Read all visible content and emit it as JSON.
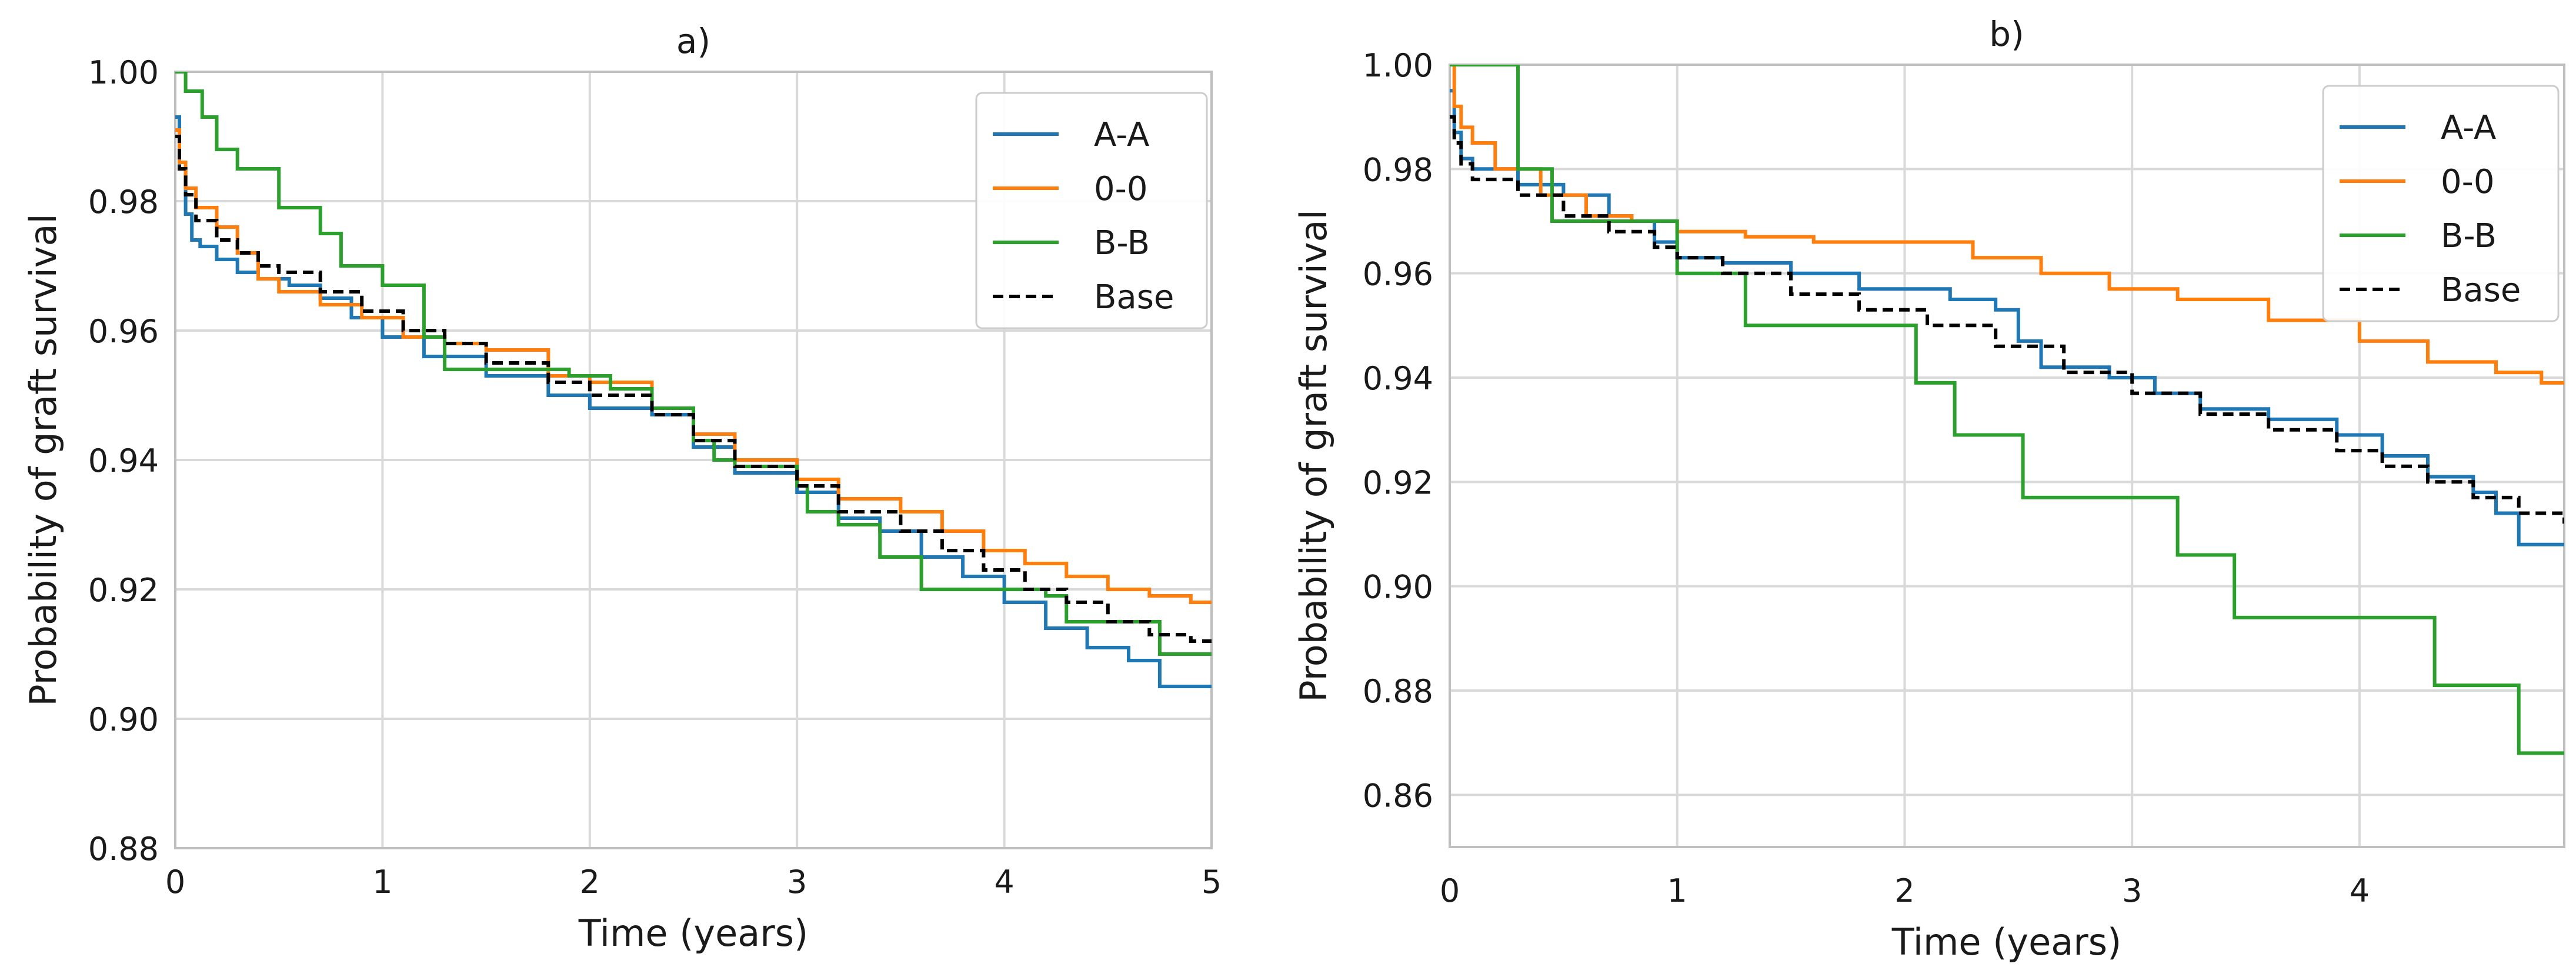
{
  "chart_data": [
    {
      "type": "line",
      "title": "a)",
      "xlabel": "Time (years)",
      "ylabel": "Probability of graft survival",
      "xlim": [
        0,
        5
      ],
      "ylim": [
        0.88,
        1.0
      ],
      "xticks": [
        0,
        1,
        2,
        3,
        4,
        5
      ],
      "xtick_labels": [
        "0",
        "1",
        "2",
        "3",
        "4",
        "5"
      ],
      "yticks": [
        0.88,
        0.9,
        0.92,
        0.94,
        0.96,
        0.98,
        1.0
      ],
      "ytick_labels": [
        "0.88",
        "0.90",
        "0.92",
        "0.94",
        "0.96",
        "0.98",
        "1.00"
      ],
      "grid": true,
      "legend_position": "top-right",
      "series": [
        {
          "name": "A-A",
          "color": "#1f77b4",
          "style": "solid",
          "x": [
            0,
            0.02,
            0.05,
            0.08,
            0.12,
            0.2,
            0.3,
            0.4,
            0.55,
            0.7,
            0.85,
            1.0,
            1.2,
            1.5,
            1.8,
            2.0,
            2.3,
            2.5,
            2.7,
            3.0,
            3.2,
            3.4,
            3.6,
            3.8,
            4.0,
            4.2,
            4.4,
            4.6,
            4.75,
            5.0
          ],
          "y": [
            0.993,
            0.985,
            0.978,
            0.974,
            0.973,
            0.971,
            0.969,
            0.968,
            0.967,
            0.965,
            0.962,
            0.959,
            0.956,
            0.953,
            0.95,
            0.948,
            0.947,
            0.942,
            0.938,
            0.935,
            0.931,
            0.929,
            0.925,
            0.922,
            0.918,
            0.914,
            0.911,
            0.909,
            0.905,
            0.905
          ]
        },
        {
          "name": "0-0",
          "color": "#ff7f0e",
          "style": "solid",
          "x": [
            0,
            0.02,
            0.05,
            0.1,
            0.2,
            0.3,
            0.4,
            0.5,
            0.7,
            0.9,
            1.1,
            1.3,
            1.5,
            1.8,
            2.0,
            2.3,
            2.5,
            2.7,
            3.0,
            3.2,
            3.5,
            3.7,
            3.9,
            4.1,
            4.3,
            4.5,
            4.7,
            4.9,
            5.0
          ],
          "y": [
            0.991,
            0.986,
            0.982,
            0.979,
            0.976,
            0.972,
            0.968,
            0.966,
            0.964,
            0.962,
            0.959,
            0.958,
            0.957,
            0.953,
            0.952,
            0.948,
            0.944,
            0.94,
            0.937,
            0.934,
            0.932,
            0.929,
            0.926,
            0.924,
            0.922,
            0.92,
            0.919,
            0.918,
            0.918
          ]
        },
        {
          "name": "B-B",
          "color": "#2ca02c",
          "style": "solid",
          "x": [
            0,
            0.05,
            0.13,
            0.2,
            0.3,
            0.5,
            0.7,
            0.8,
            1.0,
            1.2,
            1.3,
            1.5,
            1.9,
            2.1,
            2.3,
            2.5,
            2.6,
            2.7,
            2.9,
            3.0,
            3.05,
            3.2,
            3.4,
            3.6,
            3.8,
            4.0,
            4.2,
            4.3,
            4.6,
            4.75,
            5.0
          ],
          "y": [
            1.0,
            0.997,
            0.993,
            0.988,
            0.985,
            0.979,
            0.975,
            0.97,
            0.967,
            0.959,
            0.954,
            0.954,
            0.953,
            0.951,
            0.948,
            0.943,
            0.94,
            0.939,
            0.939,
            0.936,
            0.932,
            0.93,
            0.925,
            0.92,
            0.92,
            0.92,
            0.919,
            0.915,
            0.915,
            0.91,
            0.91
          ]
        },
        {
          "name": "Base",
          "color": "#000000",
          "style": "dashed",
          "x": [
            0,
            0.02,
            0.05,
            0.1,
            0.2,
            0.3,
            0.4,
            0.5,
            0.7,
            0.9,
            1.1,
            1.3,
            1.5,
            1.8,
            2.0,
            2.3,
            2.5,
            2.7,
            3.0,
            3.2,
            3.5,
            3.7,
            3.9,
            4.1,
            4.3,
            4.5,
            4.7,
            4.9,
            5.0
          ],
          "y": [
            0.99,
            0.985,
            0.981,
            0.977,
            0.974,
            0.972,
            0.97,
            0.969,
            0.966,
            0.963,
            0.96,
            0.958,
            0.955,
            0.952,
            0.95,
            0.947,
            0.943,
            0.939,
            0.936,
            0.932,
            0.929,
            0.926,
            0.923,
            0.92,
            0.918,
            0.915,
            0.913,
            0.912,
            0.912
          ]
        }
      ]
    },
    {
      "type": "line",
      "title": "b)",
      "xlabel": "Time (years)",
      "ylabel": "Probability of graft survival",
      "xlim": [
        0,
        4.9
      ],
      "ylim": [
        0.85,
        1.0
      ],
      "xticks": [
        0,
        1,
        2,
        3,
        4
      ],
      "xtick_labels": [
        "0",
        "1",
        "2",
        "3",
        "4"
      ],
      "yticks": [
        0.86,
        0.88,
        0.9,
        0.92,
        0.94,
        0.96,
        0.98,
        1.0
      ],
      "ytick_labels": [
        "0.86",
        "0.88",
        "0.90",
        "0.92",
        "0.94",
        "0.96",
        "0.98",
        "1.00"
      ],
      "grid": true,
      "legend_position": "top-right",
      "series": [
        {
          "name": "A-A",
          "color": "#1f77b4",
          "style": "solid",
          "x": [
            0,
            0.02,
            0.05,
            0.1,
            0.3,
            0.5,
            0.7,
            0.8,
            0.9,
            1.0,
            1.2,
            1.5,
            1.8,
            2.2,
            2.4,
            2.5,
            2.6,
            2.7,
            2.9,
            3.1,
            3.3,
            3.6,
            3.9,
            4.1,
            4.3,
            4.5,
            4.6,
            4.7,
            4.9
          ],
          "y": [
            0.995,
            0.987,
            0.982,
            0.98,
            0.977,
            0.975,
            0.971,
            0.97,
            0.966,
            0.963,
            0.962,
            0.96,
            0.957,
            0.955,
            0.953,
            0.947,
            0.942,
            0.942,
            0.94,
            0.937,
            0.934,
            0.932,
            0.929,
            0.925,
            0.921,
            0.918,
            0.914,
            0.908,
            0.908
          ]
        },
        {
          "name": "0-0",
          "color": "#ff7f0e",
          "style": "solid",
          "x": [
            0,
            0.02,
            0.05,
            0.1,
            0.2,
            0.4,
            0.6,
            0.8,
            1.0,
            1.3,
            1.6,
            2.0,
            2.3,
            2.6,
            2.9,
            3.2,
            3.6,
            4.0,
            4.3,
            4.6,
            4.8,
            4.9
          ],
          "y": [
            1.0,
            0.992,
            0.988,
            0.985,
            0.98,
            0.975,
            0.971,
            0.97,
            0.968,
            0.967,
            0.966,
            0.966,
            0.963,
            0.96,
            0.957,
            0.955,
            0.951,
            0.947,
            0.943,
            0.941,
            0.939,
            0.939
          ]
        },
        {
          "name": "B-B",
          "color": "#2ca02c",
          "style": "solid",
          "x": [
            0.0,
            0.3,
            0.45,
            0.7,
            1.0,
            1.3,
            2.05,
            2.22,
            2.52,
            3.2,
            3.45,
            4.33,
            4.7,
            4.9
          ],
          "y": [
            1.0,
            0.98,
            0.97,
            0.97,
            0.96,
            0.95,
            0.939,
            0.929,
            0.917,
            0.906,
            0.894,
            0.881,
            0.868,
            0.868
          ]
        },
        {
          "name": "Base",
          "color": "#000000",
          "style": "dashed",
          "x": [
            0,
            0.02,
            0.05,
            0.1,
            0.3,
            0.5,
            0.7,
            0.9,
            1.0,
            1.2,
            1.5,
            1.8,
            2.1,
            2.4,
            2.7,
            3.0,
            3.3,
            3.6,
            3.9,
            4.1,
            4.3,
            4.5,
            4.7,
            4.9
          ],
          "y": [
            0.99,
            0.985,
            0.981,
            0.978,
            0.975,
            0.971,
            0.968,
            0.965,
            0.963,
            0.96,
            0.956,
            0.953,
            0.95,
            0.946,
            0.941,
            0.937,
            0.933,
            0.93,
            0.926,
            0.923,
            0.92,
            0.917,
            0.914,
            0.912
          ]
        }
      ]
    }
  ]
}
